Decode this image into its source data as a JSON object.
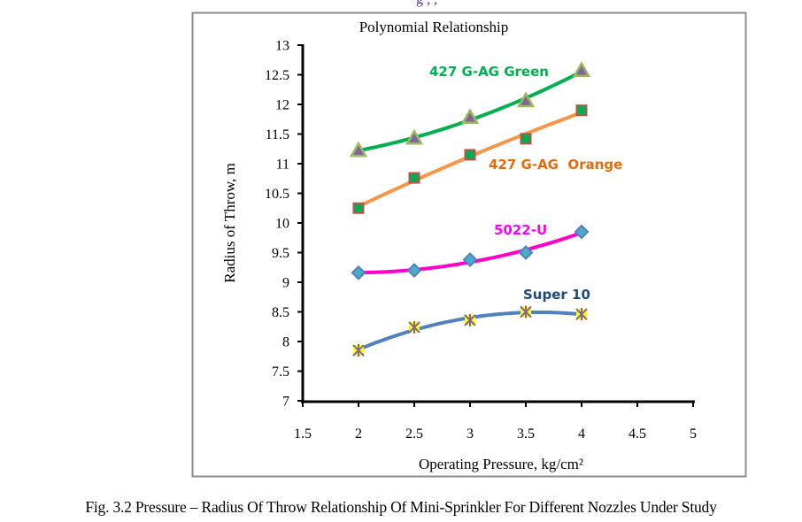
{
  "top_fragment": "g ,           ,",
  "caption": "Fig. 3.2 Pressure – Radius Of Throw Relationship Of Mini-Sprinkler For Different Nozzles Under Study",
  "chart_data": {
    "type": "line",
    "title": "Polynomial Relationship",
    "xlabel": "Operating  Pressure,  kg/cm²",
    "ylabel": "Radius of Throw, m",
    "xlim": [
      1.5,
      5
    ],
    "ylim": [
      7,
      13
    ],
    "xticks": [
      "1.5",
      "2",
      "2.5",
      "3",
      "3.5",
      "4",
      "4.5",
      "5"
    ],
    "yticks": [
      "7",
      "7.5",
      "8",
      "8.5",
      "9",
      "9.5",
      "10",
      "10.5",
      "11",
      "11.5",
      "12",
      "12.5",
      "13"
    ],
    "grid": false,
    "trendline": "polynomial",
    "x": [
      2,
      2.5,
      3,
      3.5,
      4
    ],
    "series": [
      {
        "name": "427 G-AG Green",
        "values": [
          11.22,
          11.43,
          11.78,
          12.06,
          12.57
        ],
        "line_color": "#00b050",
        "marker": "triangle",
        "marker_fill": "#8064a2",
        "marker_stroke": "#9bbb59",
        "label_color": "#00b050"
      },
      {
        "name": "427 G-AG  Orange",
        "values": [
          10.25,
          10.76,
          11.15,
          11.42,
          11.9
        ],
        "line_color": "#f79646",
        "marker": "square",
        "marker_fill": "#00b050",
        "marker_stroke": "#c0504d",
        "label_color": "#e46c0a"
      },
      {
        "name": "5022-U",
        "values": [
          9.16,
          9.2,
          9.38,
          9.5,
          9.85
        ],
        "line_color": "#ff00cc",
        "marker": "diamond",
        "marker_fill": "#4bacc6",
        "marker_stroke": "#4f81bd",
        "label_color": "#ff00ff"
      },
      {
        "name": "Super 10",
        "values": [
          7.85,
          8.24,
          8.36,
          8.5,
          8.46
        ],
        "line_color": "#4f81bd",
        "marker": "star",
        "marker_fill": "#ffff00",
        "marker_stroke": "#8064a2",
        "label_color": "#1f497d"
      }
    ]
  }
}
